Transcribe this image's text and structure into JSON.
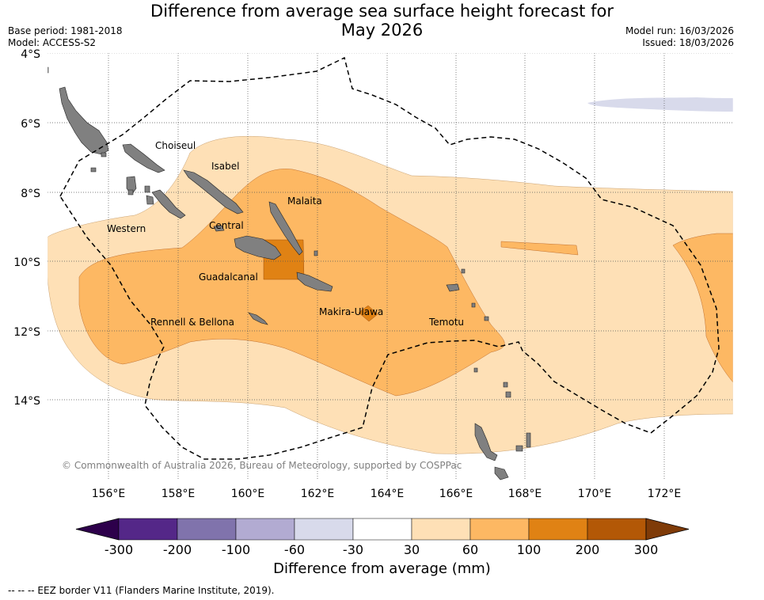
{
  "header": {
    "title_line1": "Difference from average sea surface height forecast for",
    "title_line2": "May 2026",
    "base_period": "Base period: 1981-2018",
    "model": "Model: ACCESS-S2",
    "model_run": "Model run: 16/03/2026",
    "issued": "Issued: 18/03/2026"
  },
  "map": {
    "lat_labels": [
      "4°S",
      "6°S",
      "8°S",
      "10°S",
      "12°S",
      "14°S"
    ],
    "lon_labels": [
      "156°E",
      "158°E",
      "160°E",
      "162°E",
      "164°E",
      "166°E",
      "168°E",
      "170°E",
      "172°E"
    ],
    "provinces": [
      "Choiseul",
      "Isabel",
      "Malaita",
      "Western",
      "Central",
      "Guadalcanal",
      "Makira-Ulawa",
      "Rennell & Bellona",
      "Temotu"
    ],
    "copyright": "© Commonwealth of Australia 2026, Bureau of Meteorology, supported by COSPPac",
    "land_color": "#808080"
  },
  "colorbar": {
    "ticks": [
      "-300",
      "-200",
      "-100",
      "-60",
      "-30",
      "30",
      "60",
      "100",
      "200",
      "300"
    ],
    "colors": [
      "#2d004b",
      "#542788",
      "#8073ac",
      "#b2abd2",
      "#d8daeb",
      "#ffffff",
      "#fee0b6",
      "#fdb863",
      "#e08214",
      "#b35806",
      "#7f3b08"
    ],
    "label": "Difference from average (mm)"
  },
  "legend": {
    "eez_note": "--  --  -- EEZ border V11 (Flanders Marine Institute, 2019)."
  }
}
